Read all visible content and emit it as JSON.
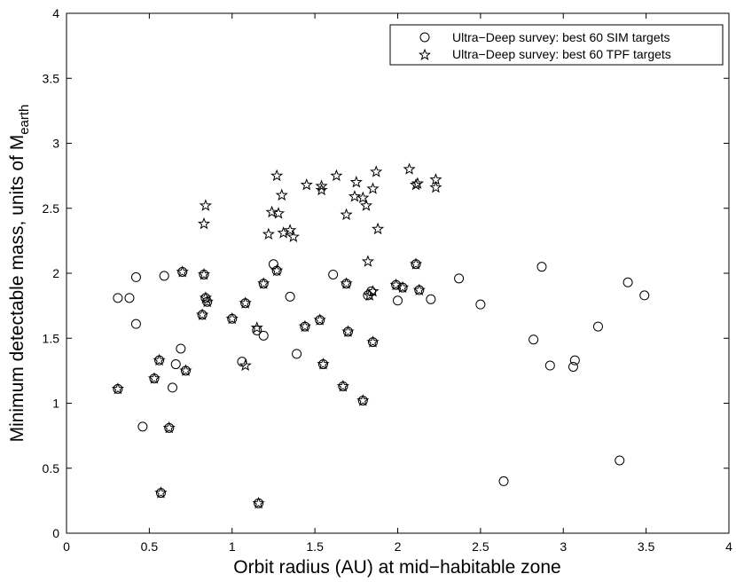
{
  "chart_data": {
    "type": "scatter",
    "xlabel": "Orbit radius (AU) at mid−habitable zone",
    "ylabel": "Minimum detectable mass, units of M",
    "ylabel_sub": "earth",
    "xlim": [
      0,
      4
    ],
    "ylim": [
      0,
      4
    ],
    "xticks": [
      "0",
      "0.5",
      "1",
      "1.5",
      "2",
      "2.5",
      "3",
      "3.5",
      "4"
    ],
    "yticks": [
      "0",
      "0.5",
      "1",
      "1.5",
      "2",
      "2.5",
      "3",
      "3.5",
      "4"
    ],
    "grid": false,
    "legend_position": "top-right",
    "series": [
      {
        "name": "Ultra−Deep survey: best 60 SIM targets",
        "marker": "circle",
        "points": [
          [
            0.31,
            1.81
          ],
          [
            0.38,
            1.81
          ],
          [
            0.42,
            1.97
          ],
          [
            0.42,
            1.61
          ],
          [
            0.31,
            1.11
          ],
          [
            0.46,
            0.82
          ],
          [
            0.53,
            1.19
          ],
          [
            0.56,
            1.33
          ],
          [
            0.57,
            0.31
          ],
          [
            0.59,
            1.98
          ],
          [
            0.62,
            0.81
          ],
          [
            0.64,
            1.12
          ],
          [
            0.66,
            1.3
          ],
          [
            0.69,
            1.42
          ],
          [
            0.7,
            2.01
          ],
          [
            0.72,
            1.25
          ],
          [
            0.82,
            1.68
          ],
          [
            0.83,
            1.99
          ],
          [
            0.84,
            1.81
          ],
          [
            0.85,
            1.78
          ],
          [
            1.0,
            1.65
          ],
          [
            1.06,
            1.32
          ],
          [
            1.08,
            1.77
          ],
          [
            1.15,
            1.56
          ],
          [
            1.16,
            0.23
          ],
          [
            1.19,
            1.52
          ],
          [
            1.19,
            1.92
          ],
          [
            1.25,
            2.07
          ],
          [
            1.27,
            2.02
          ],
          [
            1.35,
            1.82
          ],
          [
            1.39,
            1.38
          ],
          [
            1.44,
            1.59
          ],
          [
            1.53,
            1.64
          ],
          [
            1.55,
            1.3
          ],
          [
            1.61,
            1.99
          ],
          [
            1.67,
            1.13
          ],
          [
            1.69,
            1.92
          ],
          [
            1.7,
            1.55
          ],
          [
            1.79,
            1.02
          ],
          [
            1.82,
            1.83
          ],
          [
            1.84,
            1.86
          ],
          [
            1.85,
            1.47
          ],
          [
            1.99,
            1.91
          ],
          [
            2.0,
            1.79
          ],
          [
            2.03,
            1.89
          ],
          [
            2.11,
            2.07
          ],
          [
            2.13,
            1.87
          ],
          [
            2.2,
            1.8
          ],
          [
            2.37,
            1.96
          ],
          [
            2.5,
            1.76
          ],
          [
            2.64,
            0.4
          ],
          [
            2.82,
            1.49
          ],
          [
            2.87,
            2.05
          ],
          [
            2.92,
            1.29
          ],
          [
            3.06,
            1.28
          ],
          [
            3.07,
            1.33
          ],
          [
            3.21,
            1.59
          ],
          [
            3.34,
            0.56
          ],
          [
            3.39,
            1.93
          ],
          [
            3.49,
            1.83
          ]
        ]
      },
      {
        "name": "Ultra−Deep survey: best 60 TPF targets",
        "marker": "star",
        "points": [
          [
            0.31,
            1.11
          ],
          [
            0.53,
            1.19
          ],
          [
            0.56,
            1.33
          ],
          [
            0.57,
            0.31
          ],
          [
            0.62,
            0.81
          ],
          [
            0.7,
            2.01
          ],
          [
            0.72,
            1.25
          ],
          [
            0.82,
            1.68
          ],
          [
            0.83,
            1.99
          ],
          [
            0.84,
            1.81
          ],
          [
            0.85,
            1.78
          ],
          [
            0.83,
            2.38
          ],
          [
            0.84,
            2.52
          ],
          [
            1.0,
            1.65
          ],
          [
            1.08,
            1.77
          ],
          [
            1.08,
            1.29
          ],
          [
            1.15,
            1.58
          ],
          [
            1.16,
            0.23
          ],
          [
            1.19,
            1.92
          ],
          [
            1.22,
            2.3
          ],
          [
            1.24,
            2.47
          ],
          [
            1.27,
            2.02
          ],
          [
            1.27,
            2.75
          ],
          [
            1.28,
            2.46
          ],
          [
            1.3,
            2.6
          ],
          [
            1.31,
            2.31
          ],
          [
            1.35,
            2.33
          ],
          [
            1.37,
            2.28
          ],
          [
            1.44,
            1.59
          ],
          [
            1.45,
            2.68
          ],
          [
            1.53,
            1.64
          ],
          [
            1.54,
            2.67
          ],
          [
            1.54,
            2.64
          ],
          [
            1.55,
            1.3
          ],
          [
            1.63,
            2.75
          ],
          [
            1.67,
            1.13
          ],
          [
            1.69,
            1.92
          ],
          [
            1.69,
            2.45
          ],
          [
            1.7,
            1.55
          ],
          [
            1.74,
            2.59
          ],
          [
            1.75,
            2.7
          ],
          [
            1.79,
            1.02
          ],
          [
            1.79,
            2.58
          ],
          [
            1.81,
            2.52
          ],
          [
            1.82,
            2.09
          ],
          [
            1.83,
            1.83
          ],
          [
            1.85,
            1.86
          ],
          [
            1.85,
            1.47
          ],
          [
            1.85,
            2.65
          ],
          [
            1.87,
            2.78
          ],
          [
            1.88,
            2.34
          ],
          [
            1.99,
            1.91
          ],
          [
            2.03,
            1.89
          ],
          [
            2.07,
            2.8
          ],
          [
            2.11,
            2.07
          ],
          [
            2.12,
            2.69
          ],
          [
            2.13,
            1.87
          ],
          [
            2.23,
            2.66
          ],
          [
            2.23,
            2.72
          ],
          [
            2.11,
            2.68
          ]
        ]
      }
    ]
  }
}
